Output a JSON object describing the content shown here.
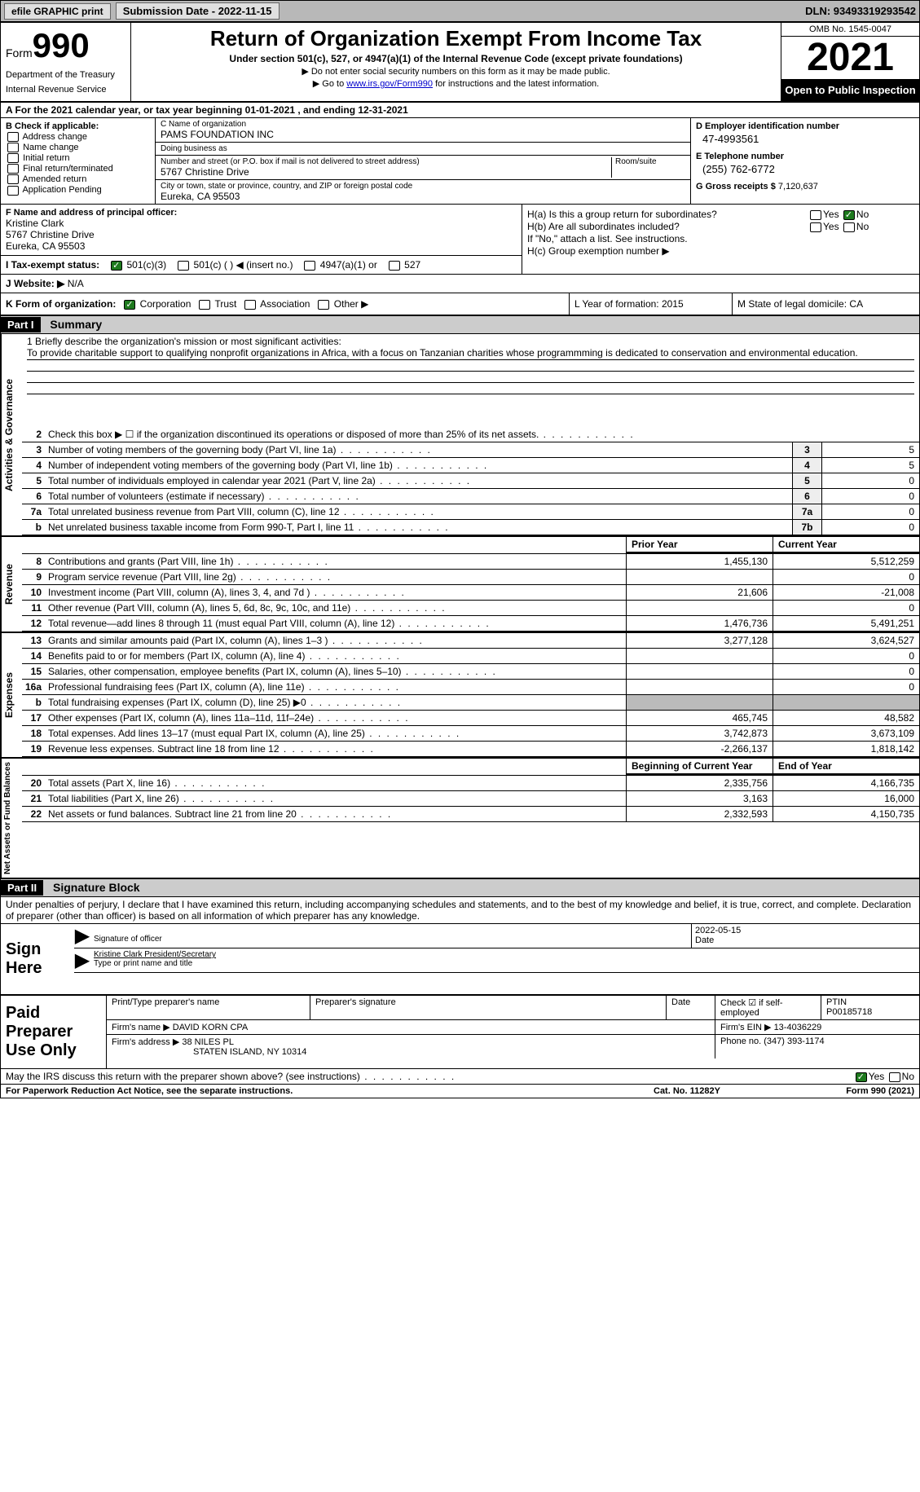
{
  "topbar": {
    "efile": "efile GRAPHIC print",
    "sub_label": "Submission Date - 2022-11-15",
    "dln": "DLN: 93493319293542"
  },
  "header": {
    "form_word": "Form",
    "form_num": "990",
    "dept": "Department of the Treasury",
    "irs": "Internal Revenue Service",
    "title": "Return of Organization Exempt From Income Tax",
    "subtitle": "Under section 501(c), 527, or 4947(a)(1) of the Internal Revenue Code (except private foundations)",
    "note1": "▶ Do not enter social security numbers on this form as it may be made public.",
    "note2_pre": "▶ Go to ",
    "note2_link": "www.irs.gov/Form990",
    "note2_post": " for instructions and the latest information.",
    "omb": "OMB No. 1545-0047",
    "year": "2021",
    "open": "Open to Public Inspection"
  },
  "row_a": "A For the 2021 calendar year, or tax year beginning 01-01-2021   , and ending 12-31-2021",
  "col_b": {
    "head": "B Check if applicable:",
    "opts": [
      "Address change",
      "Name change",
      "Initial return",
      "Final return/terminated",
      "Amended return",
      "Application Pending"
    ]
  },
  "col_c": {
    "name_lbl": "C Name of organization",
    "name": "PAMS FOUNDATION INC",
    "dba_lbl": "Doing business as",
    "dba": "",
    "addr_lbl": "Number and street (or P.O. box if mail is not delivered to street address)",
    "room_lbl": "Room/suite",
    "addr": "5767 Christine Drive",
    "city_lbl": "City or town, state or province, country, and ZIP or foreign postal code",
    "city": "Eureka, CA  95503"
  },
  "col_d": {
    "ein_lbl": "D Employer identification number",
    "ein": "47-4993561",
    "tel_lbl": "E Telephone number",
    "tel": "(255) 762-6772",
    "gross_lbl": "G Gross receipts $",
    "gross": "7,120,637"
  },
  "col_f": {
    "lbl": "F Name and address of principal officer:",
    "name": "Kristine Clark",
    "addr1": "5767 Christine Drive",
    "addr2": "Eureka, CA  95503"
  },
  "col_h": {
    "ha": "H(a) Is this a group return for subordinates?",
    "hb": "H(b) Are all subordinates included?",
    "hb_note": "If \"No,\" attach a list. See instructions.",
    "hc": "H(c) Group exemption number ▶",
    "yes": "Yes",
    "no": "No"
  },
  "row_i": {
    "lbl": "I Tax-exempt status:",
    "o1": "501(c)(3)",
    "o2": "501(c) (  ) ◀ (insert no.)",
    "o3": "4947(a)(1) or",
    "o4": "527"
  },
  "row_j": {
    "lbl": "J  Website: ▶",
    "val": "N/A"
  },
  "row_k": {
    "lbl": "K Form of organization:",
    "o1": "Corporation",
    "o2": "Trust",
    "o3": "Association",
    "o4": "Other ▶",
    "l": "L Year of formation: 2015",
    "m": "M State of legal domicile: CA"
  },
  "part1": {
    "hdr": "Part I",
    "title": "Summary"
  },
  "mission": {
    "lbl": "1  Briefly describe the organization's mission or most significant activities:",
    "txt": "To provide charitable support to qualifying nonprofit organizations in Africa, with a focus on Tanzanian charities whose programmming is dedicated to conservation and environmental education."
  },
  "lines_gov": [
    {
      "n": "2",
      "t": "Check this box ▶ ☐ if the organization discontinued its operations or disposed of more than 25% of its net assets.",
      "box": "",
      "val": ""
    },
    {
      "n": "3",
      "t": "Number of voting members of the governing body (Part VI, line 1a)",
      "box": "3",
      "val": "5"
    },
    {
      "n": "4",
      "t": "Number of independent voting members of the governing body (Part VI, line 1b)",
      "box": "4",
      "val": "5"
    },
    {
      "n": "5",
      "t": "Total number of individuals employed in calendar year 2021 (Part V, line 2a)",
      "box": "5",
      "val": "0"
    },
    {
      "n": "6",
      "t": "Total number of volunteers (estimate if necessary)",
      "box": "6",
      "val": "0"
    },
    {
      "n": "7a",
      "t": "Total unrelated business revenue from Part VIII, column (C), line 12",
      "box": "7a",
      "val": "0"
    },
    {
      "n": "b",
      "t": "Net unrelated business taxable income from Form 990-T, Part I, line 11",
      "box": "7b",
      "val": "0"
    }
  ],
  "col_hdrs": {
    "prior": "Prior Year",
    "curr": "Current Year",
    "beg": "Beginning of Current Year",
    "end": "End of Year"
  },
  "revenue": [
    {
      "n": "8",
      "t": "Contributions and grants (Part VIII, line 1h)",
      "p": "1,455,130",
      "c": "5,512,259"
    },
    {
      "n": "9",
      "t": "Program service revenue (Part VIII, line 2g)",
      "p": "",
      "c": "0"
    },
    {
      "n": "10",
      "t": "Investment income (Part VIII, column (A), lines 3, 4, and 7d )",
      "p": "21,606",
      "c": "-21,008"
    },
    {
      "n": "11",
      "t": "Other revenue (Part VIII, column (A), lines 5, 6d, 8c, 9c, 10c, and 11e)",
      "p": "",
      "c": "0"
    },
    {
      "n": "12",
      "t": "Total revenue—add lines 8 through 11 (must equal Part VIII, column (A), line 12)",
      "p": "1,476,736",
      "c": "5,491,251"
    }
  ],
  "expenses": [
    {
      "n": "13",
      "t": "Grants and similar amounts paid (Part IX, column (A), lines 1–3 )",
      "p": "3,277,128",
      "c": "3,624,527"
    },
    {
      "n": "14",
      "t": "Benefits paid to or for members (Part IX, column (A), line 4)",
      "p": "",
      "c": "0"
    },
    {
      "n": "15",
      "t": "Salaries, other compensation, employee benefits (Part IX, column (A), lines 5–10)",
      "p": "",
      "c": "0"
    },
    {
      "n": "16a",
      "t": "Professional fundraising fees (Part IX, column (A), line 11e)",
      "p": "",
      "c": "0"
    },
    {
      "n": "b",
      "t": "Total fundraising expenses (Part IX, column (D), line 25) ▶0",
      "p": "GREY",
      "c": "GREY"
    },
    {
      "n": "17",
      "t": "Other expenses (Part IX, column (A), lines 11a–11d, 11f–24e)",
      "p": "465,745",
      "c": "48,582"
    },
    {
      "n": "18",
      "t": "Total expenses. Add lines 13–17 (must equal Part IX, column (A), line 25)",
      "p": "3,742,873",
      "c": "3,673,109"
    },
    {
      "n": "19",
      "t": "Revenue less expenses. Subtract line 18 from line 12",
      "p": "-2,266,137",
      "c": "1,818,142"
    }
  ],
  "netassets": [
    {
      "n": "20",
      "t": "Total assets (Part X, line 16)",
      "p": "2,335,756",
      "c": "4,166,735"
    },
    {
      "n": "21",
      "t": "Total liabilities (Part X, line 26)",
      "p": "3,163",
      "c": "16,000"
    },
    {
      "n": "22",
      "t": "Net assets or fund balances. Subtract line 21 from line 20",
      "p": "2,332,593",
      "c": "4,150,735"
    }
  ],
  "vtabs": {
    "gov": "Activities & Governance",
    "rev": "Revenue",
    "exp": "Expenses",
    "net": "Net Assets or Fund Balances"
  },
  "part2": {
    "hdr": "Part II",
    "title": "Signature Block"
  },
  "sig_decl": "Under penalties of perjury, I declare that I have examined this return, including accompanying schedules and statements, and to the best of my knowledge and belief, it is true, correct, and complete. Declaration of preparer (other than officer) is based on all information of which preparer has any knowledge.",
  "sign": {
    "lbl": "Sign Here",
    "sig_lbl": "Signature of officer",
    "date": "2022-05-15",
    "date_lbl": "Date",
    "name": "Kristine Clark  President/Secretary",
    "name_lbl": "Type or print name and title"
  },
  "paid": {
    "lbl": "Paid Preparer Use Only",
    "pname_lbl": "Print/Type preparer's name",
    "psig_lbl": "Preparer's signature",
    "pdate_lbl": "Date",
    "pcheck_lbl": "Check ☑ if self-employed",
    "ptin_lbl": "PTIN",
    "ptin": "P00185718",
    "firm_lbl": "Firm's name   ▶",
    "firm": "DAVID KORN CPA",
    "fein_lbl": "Firm's EIN ▶",
    "fein": "13-4036229",
    "faddr_lbl": "Firm's address ▶",
    "faddr1": "38 NILES PL",
    "faddr2": "STATEN ISLAND, NY  10314",
    "fphone_lbl": "Phone no.",
    "fphone": "(347) 393-1174"
  },
  "discuss": {
    "txt": "May the IRS discuss this return with the preparer shown above? (see instructions)",
    "yes": "Yes",
    "no": "No"
  },
  "footer": {
    "pra": "For Paperwork Reduction Act Notice, see the separate instructions.",
    "cat": "Cat. No. 11282Y",
    "form": "Form 990 (2021)"
  }
}
